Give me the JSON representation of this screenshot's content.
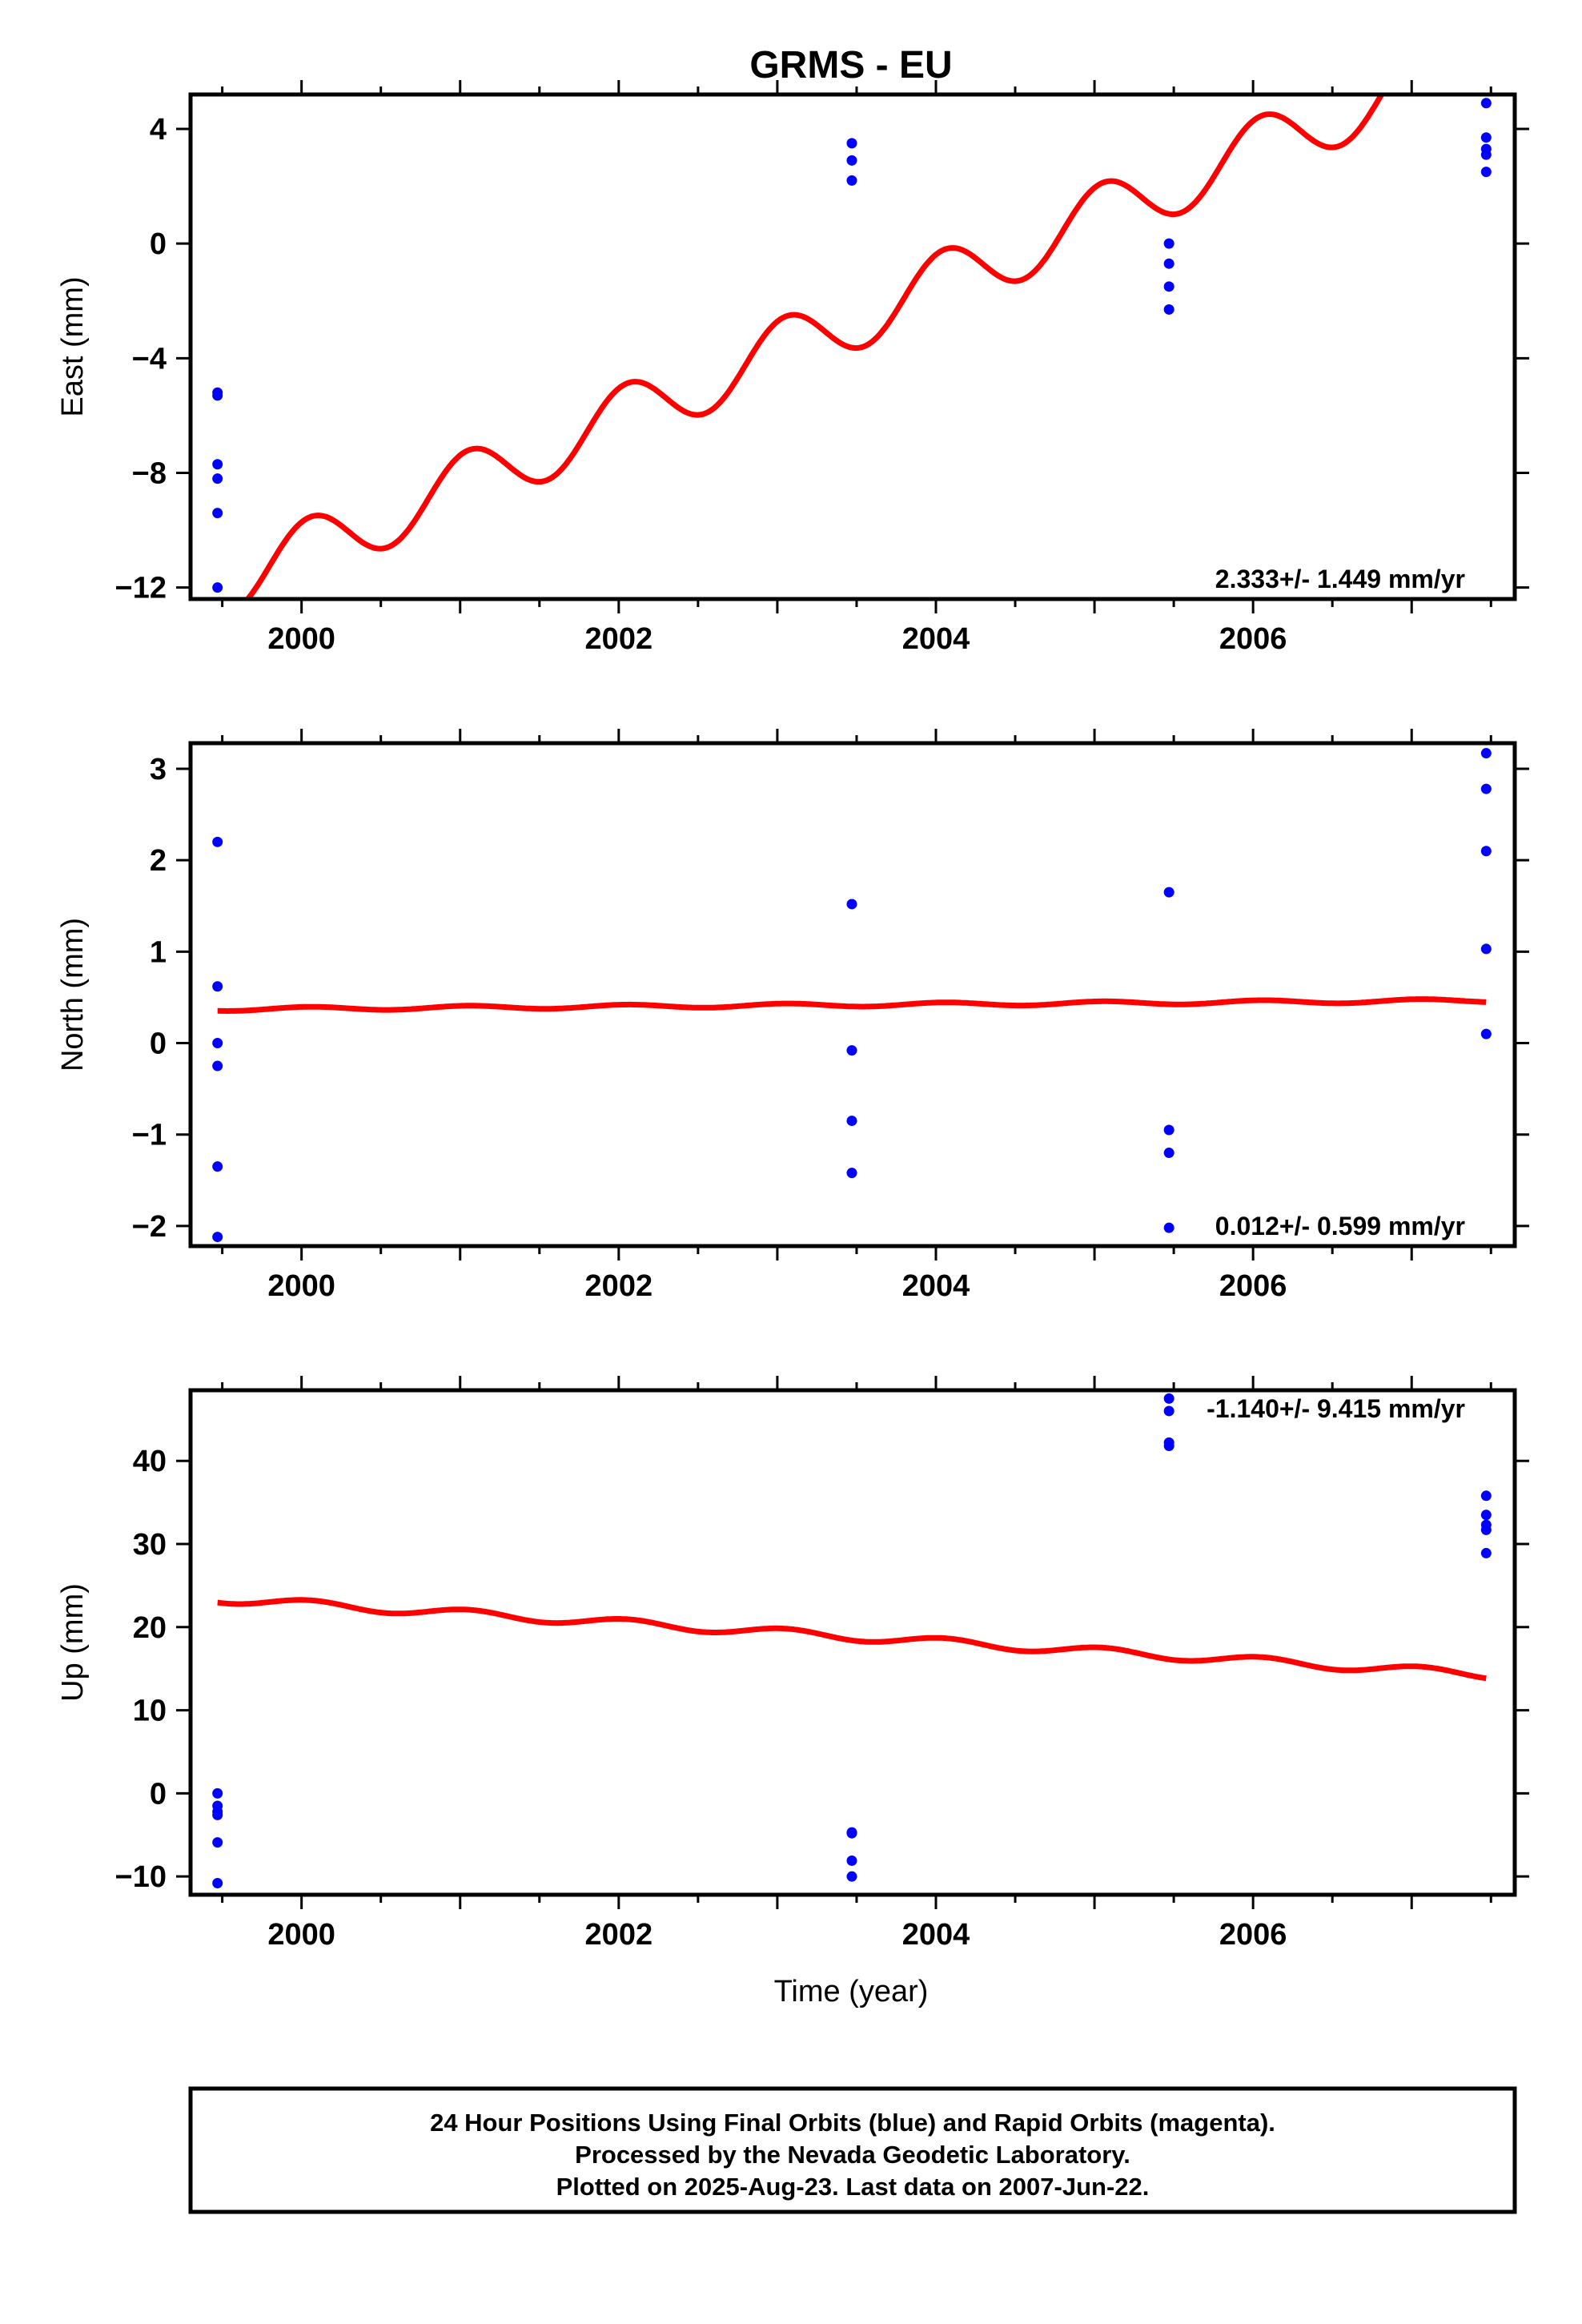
{
  "title": "GRMS - EU",
  "xlabel": "Time (year)",
  "colors": {
    "data": "#0000ff",
    "model": "#ff0000",
    "frame": "#000000",
    "background": "#ffffff"
  },
  "chart_data": [
    {
      "type": "scatter",
      "name": "east",
      "ylabel": "East (mm)",
      "xlim": [
        1999.3,
        2007.65
      ],
      "ylim": [
        -12.4,
        5.2
      ],
      "xticks": [
        2000,
        2002,
        2004,
        2006
      ],
      "xtick_labels": [
        "2000",
        "2002",
        "2004",
        "2006"
      ],
      "yticks": [
        -12,
        -8,
        -4,
        0,
        4
      ],
      "ytick_labels": [
        "−12",
        "−8",
        "−4",
        "0",
        "4"
      ],
      "rate_text": "2.333+/- 1.449 mm/yr",
      "points": [
        [
          1999.47,
          -5.2
        ],
        [
          1999.47,
          -5.3
        ],
        [
          1999.47,
          -7.7
        ],
        [
          1999.47,
          -8.2
        ],
        [
          1999.47,
          -9.4
        ],
        [
          1999.47,
          -12.0
        ],
        [
          2003.47,
          3.5
        ],
        [
          2003.47,
          2.9
        ],
        [
          2003.47,
          2.2
        ],
        [
          2005.47,
          0.0
        ],
        [
          2005.47,
          -0.7
        ],
        [
          2005.47,
          -1.5
        ],
        [
          2005.47,
          -2.3
        ],
        [
          2007.47,
          4.9
        ],
        [
          2007.47,
          3.7
        ],
        [
          2007.47,
          3.3
        ],
        [
          2007.47,
          3.1
        ],
        [
          2007.47,
          2.5
        ]
      ],
      "model": {
        "x_start": 1999.47,
        "x_end": 2007.47,
        "y_at_start": -12.0,
        "rate_per_yr": 2.333,
        "annual_amplitude": 1.1,
        "annual_phase_year": 1999.8
      }
    },
    {
      "type": "scatter",
      "name": "north",
      "ylabel": "North (mm)",
      "xlim": [
        1999.3,
        2007.65
      ],
      "ylim": [
        -2.22,
        3.28
      ],
      "xticks": [
        2000,
        2002,
        2004,
        2006
      ],
      "xtick_labels": [
        "2000",
        "2002",
        "2004",
        "2006"
      ],
      "yticks": [
        -2,
        -1,
        0,
        1,
        2,
        3
      ],
      "ytick_labels": [
        "−2",
        "−1",
        "0",
        "1",
        "2",
        "3"
      ],
      "rate_text": "0.012+/- 0.599 mm/yr",
      "points": [
        [
          1999.47,
          2.2
        ],
        [
          1999.47,
          0.62
        ],
        [
          1999.47,
          0.0
        ],
        [
          1999.47,
          -0.25
        ],
        [
          1999.47,
          -1.35
        ],
        [
          1999.47,
          -2.12
        ],
        [
          2003.47,
          1.52
        ],
        [
          2003.47,
          -0.08
        ],
        [
          2003.47,
          -0.85
        ],
        [
          2003.47,
          -1.42
        ],
        [
          2005.47,
          1.65
        ],
        [
          2005.47,
          -0.95
        ],
        [
          2005.47,
          -1.2
        ],
        [
          2005.47,
          -2.02
        ],
        [
          2007.47,
          3.17
        ],
        [
          2007.47,
          2.78
        ],
        [
          2007.47,
          2.1
        ],
        [
          2007.47,
          1.03
        ],
        [
          2007.47,
          0.1
        ]
      ],
      "model": {
        "x_start": 1999.47,
        "x_end": 2007.47,
        "y_at_start": 0.37,
        "rate_per_yr": 0.012,
        "annual_amplitude": 0.02,
        "annual_phase_year": 1999.8
      }
    },
    {
      "type": "scatter",
      "name": "up",
      "ylabel": "Up (mm)",
      "xlim": [
        1999.3,
        2007.65
      ],
      "ylim": [
        -12.2,
        48.5
      ],
      "xticks": [
        2000,
        2002,
        2004,
        2006
      ],
      "xtick_labels": [
        "2000",
        "2002",
        "2004",
        "2006"
      ],
      "yticks": [
        -10,
        0,
        10,
        20,
        30,
        40
      ],
      "ytick_labels": [
        "−10",
        "0",
        "10",
        "20",
        "30",
        "40"
      ],
      "rate_text": "-1.140+/- 9.415 mm/yr",
      "points": [
        [
          1999.47,
          0.0
        ],
        [
          1999.47,
          -1.5
        ],
        [
          1999.47,
          -2.2
        ],
        [
          1999.47,
          -2.6
        ],
        [
          1999.47,
          -5.9
        ],
        [
          1999.47,
          -10.8
        ],
        [
          2003.47,
          -4.7
        ],
        [
          2003.47,
          -4.8
        ],
        [
          2003.47,
          -8.1
        ],
        [
          2003.47,
          -10.0
        ],
        [
          2005.47,
          47.5
        ],
        [
          2005.47,
          46.0
        ],
        [
          2005.47,
          42.2
        ],
        [
          2005.47,
          41.8
        ],
        [
          2007.47,
          35.8
        ],
        [
          2007.47,
          33.5
        ],
        [
          2007.47,
          32.3
        ],
        [
          2007.47,
          31.7
        ],
        [
          2007.47,
          28.9
        ]
      ],
      "model": {
        "x_start": 1999.47,
        "x_end": 2007.47,
        "y_at_start": 23.4,
        "rate_per_yr": -1.14,
        "annual_amplitude": 0.5,
        "annual_phase_year": 1999.8
      }
    }
  ],
  "caption": [
    "24 Hour Positions Using Final Orbits (blue) and Rapid Orbits (magenta).",
    "Processed by the Nevada Geodetic Laboratory.",
    "Plotted on 2025-Aug-23. Last data on 2007-Jun-22."
  ]
}
